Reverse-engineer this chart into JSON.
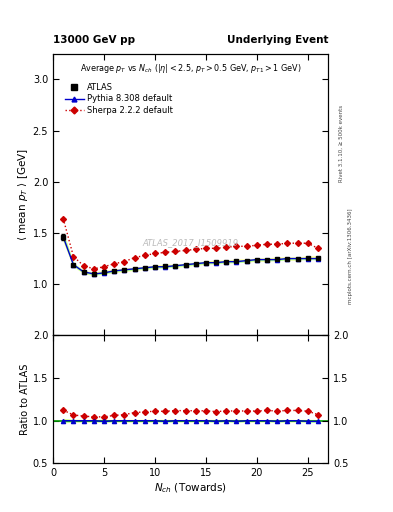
{
  "title_left": "13000 GeV pp",
  "title_right": "Underlying Event",
  "plot_title": "Average $p_T$ vs $N_{ch}$ ($|\\eta| < 2.5$, $p_T > 0.5$ GeV, $p_{T1} > 1$ GeV)",
  "xlabel": "$N_{ch}$ (Towards)",
  "ylabel_main": "$\\langle$ mean $p_T$ $\\rangle$ [GeV]",
  "ylabel_ratio": "Ratio to ATLAS",
  "watermark": "ATLAS_2017_I1509919",
  "rivet_label": "Rivet 3.1.10, ≥ 500k events",
  "arxiv_label": "mcplots.cern.ch [arXiv:1306.3436]",
  "xlim": [
    0,
    27
  ],
  "ylim_main": [
    0.5,
    3.25
  ],
  "ylim_ratio": [
    0.5,
    2.0
  ],
  "yticks_main": [
    1.0,
    1.5,
    2.0,
    2.5,
    3.0
  ],
  "yticks_ratio": [
    0.5,
    1.0,
    1.5,
    2.0
  ],
  "atlas_x": [
    1,
    2,
    3,
    4,
    5,
    6,
    7,
    8,
    9,
    10,
    11,
    12,
    13,
    14,
    15,
    16,
    17,
    18,
    19,
    20,
    21,
    22,
    23,
    24,
    25,
    26
  ],
  "atlas_y": [
    1.46,
    1.19,
    1.12,
    1.1,
    1.12,
    1.13,
    1.14,
    1.15,
    1.16,
    1.17,
    1.18,
    1.18,
    1.19,
    1.2,
    1.21,
    1.22,
    1.22,
    1.23,
    1.23,
    1.24,
    1.24,
    1.25,
    1.25,
    1.25,
    1.26,
    1.26
  ],
  "atlas_yerr": [
    0.03,
    0.01,
    0.01,
    0.01,
    0.01,
    0.01,
    0.01,
    0.01,
    0.01,
    0.01,
    0.01,
    0.01,
    0.01,
    0.01,
    0.01,
    0.01,
    0.01,
    0.01,
    0.01,
    0.01,
    0.01,
    0.01,
    0.01,
    0.01,
    0.01,
    0.01
  ],
  "pythia_x": [
    1,
    2,
    3,
    4,
    5,
    6,
    7,
    8,
    9,
    10,
    11,
    12,
    13,
    14,
    15,
    16,
    17,
    18,
    19,
    20,
    21,
    22,
    23,
    24,
    25,
    26
  ],
  "pythia_y": [
    1.46,
    1.19,
    1.12,
    1.1,
    1.11,
    1.13,
    1.14,
    1.15,
    1.16,
    1.17,
    1.17,
    1.18,
    1.19,
    1.2,
    1.21,
    1.21,
    1.22,
    1.22,
    1.23,
    1.24,
    1.24,
    1.24,
    1.25,
    1.25,
    1.25,
    1.25
  ],
  "pythia_yerr": [
    0.02,
    0.01,
    0.005,
    0.005,
    0.005,
    0.005,
    0.005,
    0.005,
    0.005,
    0.005,
    0.005,
    0.005,
    0.005,
    0.005,
    0.005,
    0.005,
    0.005,
    0.005,
    0.005,
    0.005,
    0.005,
    0.005,
    0.005,
    0.005,
    0.005,
    0.005
  ],
  "sherpa_x": [
    1,
    2,
    3,
    4,
    5,
    6,
    7,
    8,
    9,
    10,
    11,
    12,
    13,
    14,
    15,
    16,
    17,
    18,
    19,
    20,
    21,
    22,
    23,
    24,
    25,
    26
  ],
  "sherpa_y": [
    1.64,
    1.27,
    1.18,
    1.15,
    1.17,
    1.2,
    1.22,
    1.26,
    1.28,
    1.3,
    1.31,
    1.32,
    1.33,
    1.34,
    1.35,
    1.35,
    1.36,
    1.37,
    1.37,
    1.38,
    1.39,
    1.39,
    1.4,
    1.4,
    1.4,
    1.35
  ],
  "sherpa_yerr": [
    0.03,
    0.01,
    0.008,
    0.008,
    0.008,
    0.008,
    0.008,
    0.008,
    0.008,
    0.008,
    0.008,
    0.008,
    0.008,
    0.008,
    0.008,
    0.008,
    0.008,
    0.008,
    0.008,
    0.008,
    0.008,
    0.008,
    0.008,
    0.008,
    0.008,
    0.008
  ],
  "atlas_color": "#000000",
  "pythia_color": "#0000cc",
  "sherpa_color": "#cc0000",
  "atlas_band_color": "#ffff99",
  "pythia_band_color": "#99ff99",
  "background_color": "#ffffff"
}
